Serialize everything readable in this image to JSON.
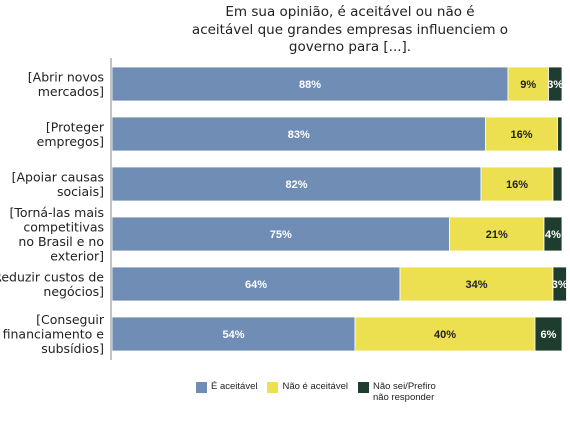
{
  "chart_data": {
    "type": "bar",
    "orientation": "horizontal",
    "stacked": true,
    "title": "Em sua opinião, é aceitável ou não é\naceitável que grandes empresas influenciem o\ngoverno para [...].",
    "categories": [
      "[Abrir novos\nmercados]",
      "[Proteger\nempregos]",
      "[Apoiar causas\nsociais]",
      "[Torná-las mais\ncompetitivas\nno Brasil e no\nexterior]",
      "[Reduzir custos de\nnegócios]",
      "[Conseguir\nfinanciamento e\nsubsídios]"
    ],
    "series": [
      {
        "name": "É aceitável",
        "color": "#6f8db5",
        "label_color": "#ffffff",
        "values": [
          88,
          83,
          82,
          75,
          64,
          54
        ],
        "labels": [
          "88%",
          "83%",
          "82%",
          "75%",
          "64%",
          "54%"
        ]
      },
      {
        "name": "Não é aceitável",
        "color": "#ece051",
        "label_color": "#222222",
        "values": [
          9,
          16,
          16,
          21,
          34,
          40
        ],
        "labels": [
          "9%",
          "16%",
          "16%",
          "21%",
          "34%",
          "40%"
        ]
      },
      {
        "name": "Não sei/Prefiro\nnão responder",
        "color": "#1f3d2e",
        "label_color": "#ffffff",
        "values": [
          3,
          1,
          2,
          4,
          3,
          6
        ],
        "labels": [
          "3%",
          "",
          "",
          "4%",
          "3%",
          "6%"
        ]
      }
    ],
    "xlim": [
      0,
      100
    ],
    "grid": false,
    "legend_position": "bottom"
  }
}
